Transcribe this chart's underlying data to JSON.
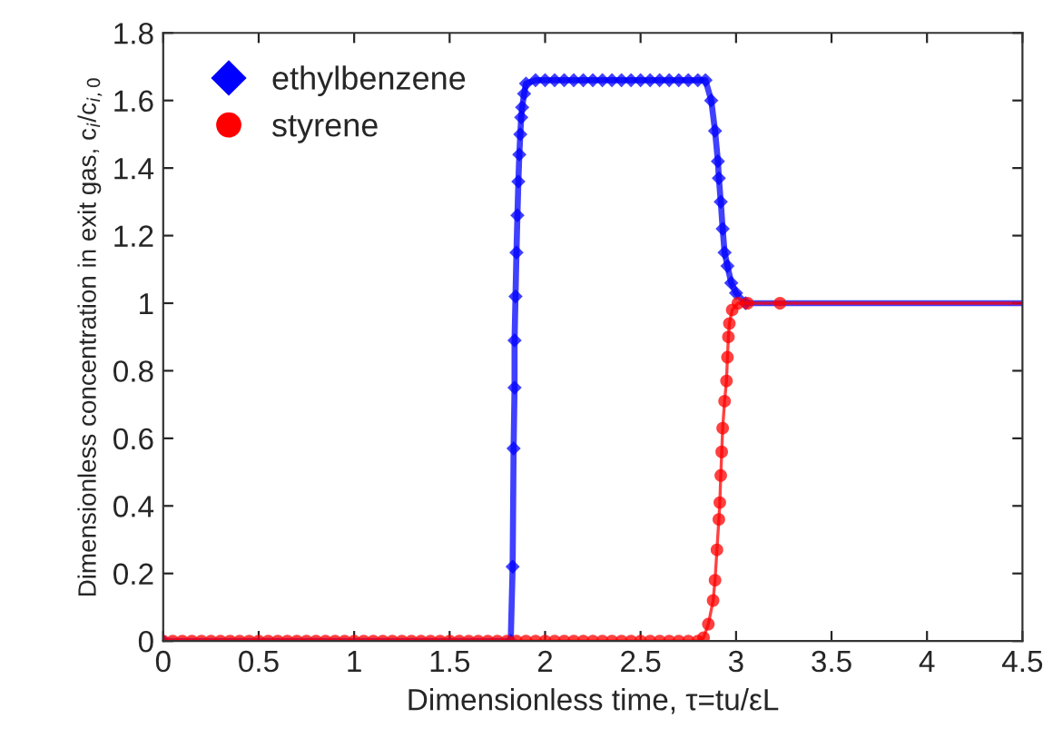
{
  "chart_data": {
    "type": "line",
    "xlabel": "Dimensionless time, τ=tu/εL",
    "ylabel": "Dimensionless concentration in exit gas, c$_{i}$/c$_{i,0}$",
    "xlim": [
      0,
      4.5
    ],
    "xticks": [
      0,
      0.5,
      1,
      1.5,
      2,
      2.5,
      3,
      3.5,
      4,
      4.5
    ],
    "ylim": [
      0,
      1.8
    ],
    "yticks": [
      0,
      0.2,
      0.4,
      0.6,
      0.8,
      1,
      1.2,
      1.4,
      1.6,
      1.8
    ],
    "grid": false,
    "legend": "top left",
    "line_style": "solid",
    "series": [
      {
        "name": "ethylbenzene",
        "color": "#0000ff",
        "marker": "diamond",
        "x": [
          0,
          1.82,
          1.83,
          1.835,
          1.84,
          1.84,
          1.845,
          1.85,
          1.855,
          1.86,
          1.865,
          1.87,
          1.875,
          1.88,
          1.89,
          1.9,
          1.95,
          2.0,
          2.05,
          2.1,
          2.15,
          2.2,
          2.25,
          2.3,
          2.35,
          2.4,
          2.45,
          2.5,
          2.55,
          2.6,
          2.65,
          2.7,
          2.75,
          2.8,
          2.84,
          2.87,
          2.89,
          2.905,
          2.91,
          2.92,
          2.93,
          2.94,
          2.955,
          2.975,
          3.0,
          3.05,
          4.5
        ],
        "values": [
          0,
          0,
          0.22,
          0.57,
          0.75,
          0.89,
          1.02,
          1.15,
          1.26,
          1.36,
          1.44,
          1.5,
          1.55,
          1.58,
          1.62,
          1.65,
          1.66,
          1.66,
          1.66,
          1.66,
          1.66,
          1.66,
          1.66,
          1.66,
          1.66,
          1.66,
          1.66,
          1.66,
          1.66,
          1.66,
          1.66,
          1.66,
          1.66,
          1.66,
          1.66,
          1.6,
          1.51,
          1.42,
          1.37,
          1.3,
          1.22,
          1.15,
          1.11,
          1.06,
          1.03,
          1,
          1
        ]
      },
      {
        "name": "styrene",
        "color": "#ff0000",
        "marker": "circle",
        "x": [
          0,
          0.05,
          0.1,
          0.15,
          0.2,
          0.25,
          0.3,
          0.35,
          0.4,
          0.45,
          0.5,
          0.55,
          0.6,
          0.65,
          0.7,
          0.75,
          0.8,
          0.85,
          0.9,
          0.95,
          1.0,
          1.05,
          1.1,
          1.15,
          1.2,
          1.25,
          1.3,
          1.35,
          1.4,
          1.45,
          1.5,
          1.55,
          1.6,
          1.65,
          1.7,
          1.75,
          1.8,
          1.85,
          1.9,
          1.95,
          2.0,
          2.05,
          2.1,
          2.15,
          2.2,
          2.25,
          2.3,
          2.35,
          2.4,
          2.45,
          2.5,
          2.55,
          2.6,
          2.65,
          2.7,
          2.75,
          2.8,
          2.83,
          2.855,
          2.88,
          2.89,
          2.9,
          2.91,
          2.915,
          2.92,
          2.925,
          2.93,
          2.94,
          2.95,
          2.955,
          2.96,
          2.965,
          2.98,
          3.01,
          3.06,
          3.23,
          4.5
        ],
        "values": [
          0,
          0,
          0,
          0,
          0,
          0,
          0,
          0,
          0,
          0,
          0,
          0,
          0,
          0,
          0,
          0,
          0,
          0,
          0,
          0,
          0,
          0,
          0,
          0,
          0,
          0,
          0,
          0,
          0,
          0,
          0,
          0,
          0,
          0,
          0,
          0,
          0,
          0,
          0,
          0,
          0,
          0,
          0,
          0,
          0,
          0,
          0,
          0,
          0,
          0,
          0,
          0,
          0,
          0,
          0,
          0,
          0,
          0.01,
          0.05,
          0.12,
          0.18,
          0.27,
          0.36,
          0.41,
          0.49,
          0.56,
          0.63,
          0.71,
          0.77,
          0.84,
          0.9,
          0.94,
          0.98,
          1,
          1,
          1,
          1
        ]
      }
    ]
  }
}
